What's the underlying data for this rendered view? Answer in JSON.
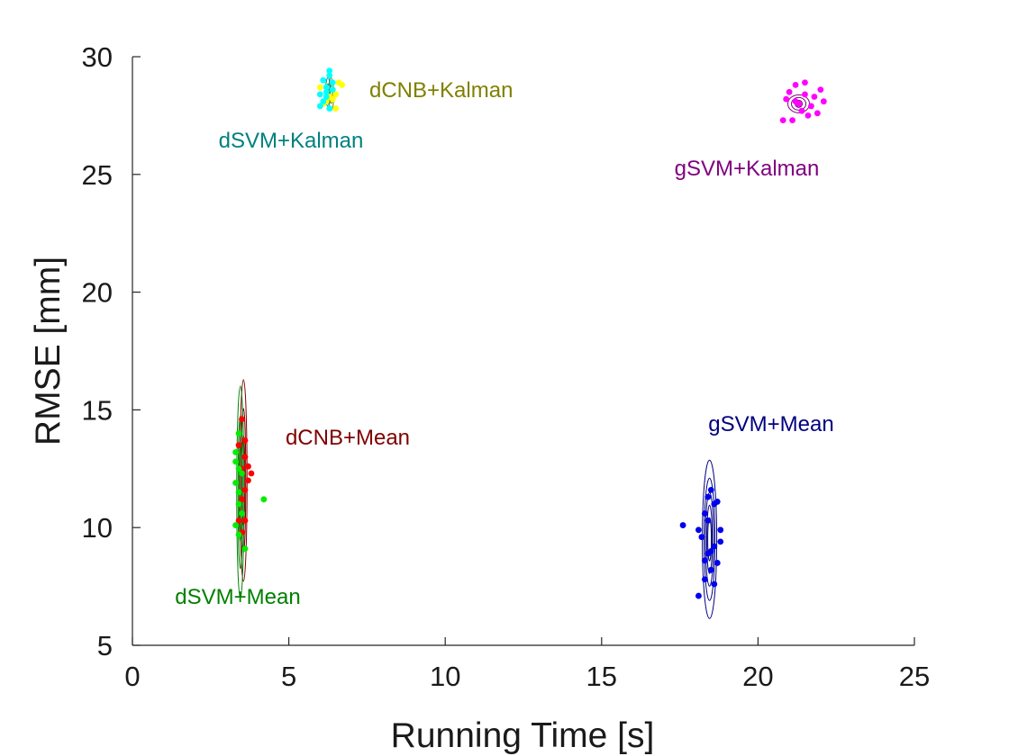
{
  "chart_data": {
    "type": "scatter",
    "title": "",
    "xlabel": "Running Time [s]",
    "ylabel": "RMSE [mm]",
    "xlim": [
      0,
      25
    ],
    "ylim": [
      5,
      30
    ],
    "xticks": [
      "0",
      "5",
      "10",
      "15",
      "20",
      "25"
    ],
    "yticks": [
      "5",
      "10",
      "15",
      "20",
      "25",
      "30"
    ],
    "grid": false,
    "legend": "none",
    "series": [
      {
        "name": "dCNB+Kalman",
        "color": "#ffff00",
        "label_color": "#808000",
        "contour_color": "#808000",
        "center": [
          6.35,
          28.4
        ],
        "x": [
          6.0,
          6.2,
          6.5,
          6.6,
          6.3,
          6.4,
          6.1,
          6.5,
          6.7,
          6.2,
          6.4
        ],
        "y": [
          28.7,
          28.1,
          27.8,
          28.9,
          28.3,
          28.6,
          28.0,
          28.4,
          28.8,
          28.5,
          28.2
        ]
      },
      {
        "name": "dSVM+Kalman",
        "color": "#00ffff",
        "label_color": "#008080",
        "contour_color": "#008080",
        "center": [
          6.25,
          28.5
        ],
        "x": [
          6.3,
          6.1,
          6.0,
          6.2,
          6.4,
          6.3,
          6.1,
          6.2,
          6.0,
          6.4,
          6.3,
          6.2
        ],
        "y": [
          29.4,
          29.0,
          28.4,
          28.7,
          28.9,
          27.8,
          28.1,
          28.5,
          27.9,
          28.6,
          29.2,
          28.3
        ]
      },
      {
        "name": "gSVM+Kalman",
        "color": "#ff00ff",
        "label_color": "#800080",
        "contour_color": "#800080",
        "center": [
          21.3,
          28.0
        ],
        "x": [
          21.2,
          21.0,
          21.5,
          21.8,
          22.0,
          21.4,
          20.9,
          21.6,
          21.1,
          22.1,
          20.8,
          21.3,
          21.7,
          21.5,
          21.2,
          21.9
        ],
        "y": [
          28.8,
          28.5,
          28.9,
          28.3,
          28.6,
          27.7,
          28.2,
          27.5,
          27.3,
          28.1,
          27.3,
          28.0,
          27.9,
          28.4,
          28.1,
          27.6
        ]
      },
      {
        "name": "dCNB+Mean",
        "color": "#ff0000",
        "label_color": "#800000",
        "contour_color": "#800000",
        "center": [
          3.55,
          12.0
        ],
        "x": [
          3.5,
          3.6,
          3.7,
          3.8,
          3.4,
          3.6,
          3.5,
          3.7,
          3.6,
          3.5,
          3.4,
          3.6,
          3.5
        ],
        "y": [
          14.6,
          13.7,
          12.6,
          12.3,
          13.5,
          11.6,
          11.2,
          12.0,
          10.3,
          9.8,
          10.3,
          13.0,
          12.5
        ]
      },
      {
        "name": "dSVM+Mean",
        "color": "#00ee00",
        "label_color": "#008000",
        "contour_color": "#008000",
        "center": [
          3.45,
          11.5
        ],
        "x": [
          3.4,
          3.3,
          3.4,
          3.5,
          3.3,
          3.4,
          4.2,
          3.5,
          3.3,
          3.4,
          3.6,
          3.3,
          3.4
        ],
        "y": [
          14.0,
          13.2,
          12.5,
          12.3,
          11.9,
          11.5,
          11.2,
          10.6,
          10.1,
          9.7,
          9.1,
          12.8,
          11.0
        ]
      },
      {
        "name": "gSVM+Mean",
        "color": "#0000ee",
        "label_color": "#000080",
        "contour_color": "#000080",
        "center": [
          18.45,
          9.5
        ],
        "x": [
          18.5,
          18.7,
          18.4,
          18.3,
          17.6,
          18.1,
          18.8,
          18.6,
          18.5,
          18.3,
          18.1,
          18.7,
          18.2,
          18.4,
          18.6,
          18.3,
          18.6,
          18.8,
          18.4,
          18.5
        ],
        "y": [
          11.6,
          11.1,
          11.3,
          10.6,
          10.1,
          9.9,
          9.4,
          9.2,
          9.0,
          8.6,
          7.1,
          8.5,
          9.6,
          10.3,
          7.6,
          7.8,
          11.0,
          9.9,
          8.9,
          8.2
        ]
      }
    ]
  }
}
